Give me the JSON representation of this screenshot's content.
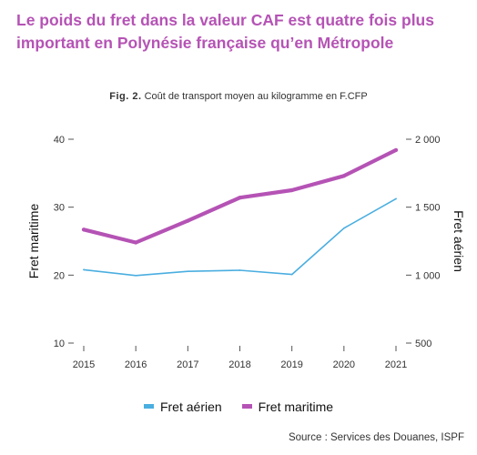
{
  "headline": "Le poids du fret dans la valeur CAF est quatre fois plus important en Polynésie française qu’en Métropole",
  "figure": {
    "tag": "Fig. 2.",
    "caption": "Coût de transport moyen au kilogramme en F.CFP"
  },
  "source": "Source : Services des Douanes, ISPF",
  "chart_data": {
    "type": "line",
    "title": "Coût de transport moyen au kilogramme en F.CFP",
    "x": [
      2015,
      2016,
      2017,
      2018,
      2019,
      2020,
      2021
    ],
    "y_left": {
      "label": "Fret maritime",
      "lim": [
        10,
        40
      ],
      "ticks": [
        10,
        20,
        30,
        40
      ],
      "tick_labels": [
        "10",
        "20",
        "30",
        "40"
      ]
    },
    "y_right": {
      "label": "Fret aérien",
      "lim": [
        500,
        2000
      ],
      "ticks": [
        500,
        1000,
        1500,
        2000
      ],
      "tick_labels": [
        "500",
        "1 000",
        "1 500",
        "2 000"
      ]
    },
    "series": [
      {
        "name": "Fret aérien",
        "axis": "right",
        "color": "#4aaee0",
        "values": [
          1040,
          997,
          1028,
          1036,
          1005,
          1345,
          1562
        ]
      },
      {
        "name": "Fret maritime",
        "axis": "left",
        "color": "#b553b5",
        "values": [
          26.7,
          24.8,
          28.0,
          31.4,
          32.5,
          34.6,
          38.4
        ]
      }
    ],
    "grid": false,
    "legend_position": "bottom"
  }
}
